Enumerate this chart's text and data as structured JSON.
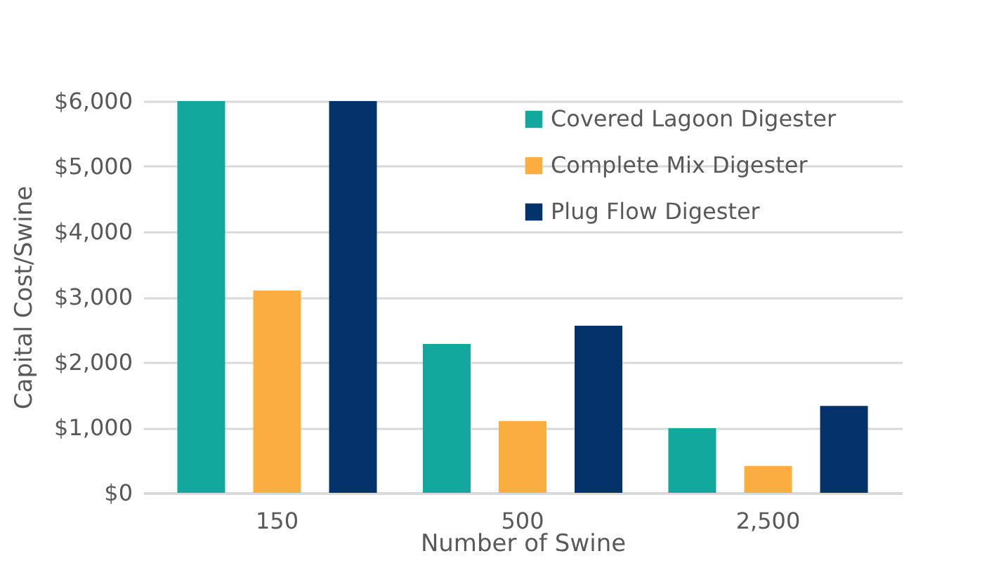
{
  "chart_data": {
    "type": "bar",
    "xlabel": "Number of Swine",
    "ylabel": "Capital Cost/Swine",
    "categories": [
      "150",
      "500",
      "2,500"
    ],
    "series": [
      {
        "name": "Covered Lagoon Digester",
        "color": "#13a89e",
        "values": [
          6000,
          2280,
          990
        ]
      },
      {
        "name": "Complete Mix Digester",
        "color": "#fbae40",
        "values": [
          3100,
          1100,
          410
        ]
      },
      {
        "name": "Plug Flow Digester",
        "color": "#03326b",
        "values": [
          6000,
          2560,
          1330
        ]
      }
    ],
    "ylim": [
      0,
      6000
    ],
    "yticks": [
      {
        "value": 0,
        "label": "$0"
      },
      {
        "value": 1000,
        "label": "$1,000"
      },
      {
        "value": 2000,
        "label": "$2,000"
      },
      {
        "value": 3000,
        "label": "$3,000"
      },
      {
        "value": 4000,
        "label": "$4,000"
      },
      {
        "value": 5000,
        "label": "$5,000"
      },
      {
        "value": 6000,
        "label": "$6,000"
      }
    ],
    "grid": "y",
    "legend": "top right"
  }
}
